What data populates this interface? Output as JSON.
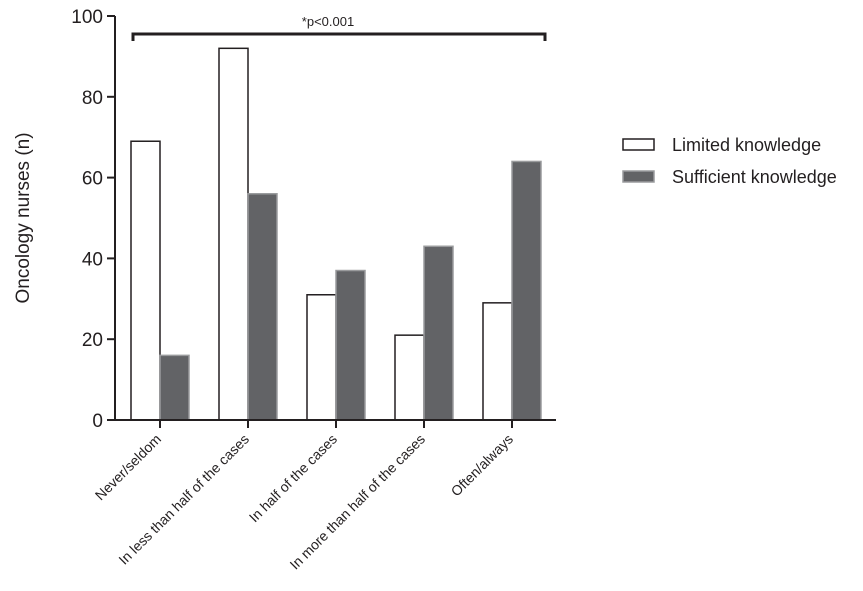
{
  "chart_data": {
    "type": "bar",
    "categories": [
      "Never/seldom",
      "In less than half of the cases",
      "In half of the cases",
      "In more than half of the cases",
      "Often/always"
    ],
    "series": [
      {
        "name": "Limited knowledge",
        "values": [
          69,
          92,
          31,
          21,
          29
        ],
        "color": "#ffffff",
        "stroke": "#231f20"
      },
      {
        "name": "Sufficient knowledge",
        "values": [
          16,
          56,
          37,
          43,
          64
        ],
        "color": "#626366",
        "stroke": "#9a9b9d"
      }
    ],
    "ylabel": "Oncology nurses (n)",
    "xlabel": "",
    "ylim": [
      0,
      100
    ],
    "yticks": [
      0,
      20,
      40,
      60,
      80,
      100
    ],
    "annotation": "*p<0.001",
    "legend_position": "right",
    "grid": false
  }
}
